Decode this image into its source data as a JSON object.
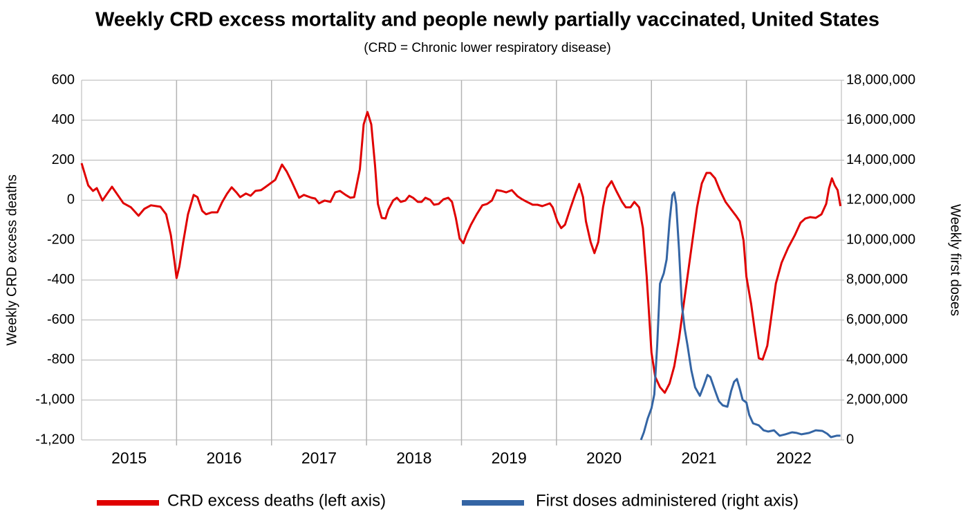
{
  "chart_data": {
    "type": "line",
    "title": "Weekly CRD excess mortality and people newly partially vaccinated, United States",
    "subtitle": "(CRD = Chronic lower respiratory disease)",
    "y_label": "Weekly CRD excess deaths",
    "y2_label": "Weekly first doses",
    "categories": [
      "2015",
      "2016",
      "2017",
      "2018",
      "2019",
      "2020",
      "2021",
      "2022"
    ],
    "xlim": [
      2015,
      2023
    ],
    "xticks": [
      2016,
      2017,
      2018,
      2019,
      2020,
      2021,
      2022
    ],
    "ylim": [
      -1200,
      600
    ],
    "yticks": [
      600,
      400,
      200,
      0,
      -200,
      -400,
      -600,
      -800,
      {
        "value": -1000,
        "label": "-1,000"
      },
      {
        "value": -1200,
        "label": "-1,200"
      }
    ],
    "y2lim": [
      0,
      18000000
    ],
    "y2ticks": [
      {
        "value": 18000000,
        "label": "18,000,000"
      },
      {
        "value": 16000000,
        "label": "16,000,000"
      },
      {
        "value": 14000000,
        "label": "14,000,000"
      },
      {
        "value": 12000000,
        "label": "12,000,000"
      },
      {
        "value": 10000000,
        "label": "10,000,000"
      },
      {
        "value": 8000000,
        "label": "8,000,000"
      },
      {
        "value": 6000000,
        "label": "6,000,000"
      },
      {
        "value": 4000000,
        "label": "4,000,000"
      },
      {
        "value": 2000000,
        "label": "2,000,000"
      },
      0
    ],
    "grid": true,
    "legend": "bottom",
    "series": [
      {
        "name": "CRD excess deaths (left axis)",
        "color": "#e00000",
        "x": [
          2015.0,
          2015.07,
          2015.12,
          2015.16,
          2015.22,
          2015.27,
          2015.32,
          2015.38,
          2015.44,
          2015.52,
          2015.6,
          2015.66,
          2015.73,
          2015.83,
          2015.89,
          2015.94,
          2015.98,
          2016.0,
          2016.03,
          2016.07,
          2016.12,
          2016.18,
          2016.22,
          2016.27,
          2016.31,
          2016.37,
          2016.43,
          2016.48,
          2016.53,
          2016.58,
          2016.63,
          2016.67,
          2016.73,
          2016.78,
          2016.83,
          2016.89,
          2016.94,
          2017.04,
          2017.11,
          2017.16,
          2017.21,
          2017.29,
          2017.34,
          2017.42,
          2017.46,
          2017.5,
          2017.56,
          2017.62,
          2017.67,
          2017.72,
          2017.78,
          2017.83,
          2017.87,
          2017.93,
          2017.97,
          2018.01,
          2018.05,
          2018.09,
          2018.12,
          2018.16,
          2018.2,
          2018.23,
          2018.28,
          2018.32,
          2018.36,
          2018.41,
          2018.45,
          2018.49,
          2018.54,
          2018.58,
          2018.62,
          2018.67,
          2018.71,
          2018.76,
          2018.81,
          2018.86,
          2018.9,
          2018.94,
          2018.98,
          2019.02,
          2019.05,
          2019.1,
          2019.16,
          2019.22,
          2019.27,
          2019.32,
          2019.37,
          2019.42,
          2019.47,
          2019.53,
          2019.59,
          2019.64,
          2019.69,
          2019.75,
          2019.8,
          2019.85,
          2019.93,
          2019.96,
          2020.01,
          2020.05,
          2020.09,
          2020.15,
          2020.2,
          2020.24,
          2020.28,
          2020.31,
          2020.36,
          2020.4,
          2020.44,
          2020.49,
          2020.53,
          2020.58,
          2020.63,
          2020.69,
          2020.73,
          2020.78,
          2020.82,
          2020.87,
          2020.91,
          2020.95,
          2021.0,
          2021.04,
          2021.09,
          2021.14,
          2021.19,
          2021.24,
          2021.29,
          2021.35,
          2021.42,
          2021.48,
          2021.53,
          2021.58,
          2021.62,
          2021.67,
          2021.72,
          2021.78,
          2021.84,
          2021.89,
          2021.93,
          2021.97,
          2022.0,
          2022.05,
          2022.09,
          2022.13,
          2022.17,
          2022.22,
          2022.26,
          2022.31,
          2022.37,
          2022.44,
          2022.51,
          2022.57,
          2022.62,
          2022.67,
          2022.73,
          2022.79,
          2022.84,
          2022.87,
          2022.9,
          2022.93,
          2022.96,
          2022.99
        ],
        "values": [
          185,
          74,
          46,
          60,
          -2,
          33,
          67,
          26,
          -15,
          -36,
          -78,
          -44,
          -26,
          -33,
          -71,
          -175,
          -313,
          -390,
          -331,
          -210,
          -71,
          26,
          15,
          -54,
          -71,
          -61,
          -61,
          -10,
          31,
          64,
          39,
          15,
          33,
          22,
          46,
          50,
          67,
          102,
          178,
          143,
          95,
          12,
          26,
          12,
          8,
          -16,
          -2,
          -9,
          39,
          46,
          26,
          12,
          15,
          154,
          379,
          441,
          379,
          171,
          -19,
          -89,
          -92,
          -47,
          -2,
          12,
          -9,
          -2,
          22,
          12,
          -9,
          -9,
          12,
          1,
          -23,
          -19,
          4,
          12,
          -9,
          -89,
          -192,
          -216,
          -175,
          -123,
          -71,
          -26,
          -19,
          -2,
          50,
          46,
          39,
          50,
          19,
          4,
          -9,
          -23,
          -23,
          -30,
          -16,
          -36,
          -106,
          -140,
          -123,
          -36,
          33,
          81,
          15,
          -106,
          -210,
          -265,
          -210,
          -36,
          60,
          95,
          46,
          -9,
          -36,
          -36,
          -9,
          -36,
          -140,
          -383,
          -763,
          -884,
          -936,
          -964,
          -918,
          -832,
          -694,
          -486,
          -244,
          -36,
          84,
          136,
          136,
          109,
          50,
          -9,
          -47,
          -78,
          -106,
          -203,
          -383,
          -521,
          -660,
          -791,
          -798,
          -729,
          -591,
          -417,
          -313,
          -237,
          -175,
          -113,
          -92,
          -85,
          -89,
          -71,
          -19,
          60,
          109,
          74,
          50,
          -30
        ]
      },
      {
        "name": "First doses administered (right axis)",
        "color": "#3465a4",
        "axis": "y2",
        "x": [
          2020.89,
          2020.92,
          2020.96,
          2021.0,
          2021.03,
          2021.06,
          2021.09,
          2021.13,
          2021.16,
          2021.19,
          2021.22,
          2021.24,
          2021.26,
          2021.29,
          2021.32,
          2021.35,
          2021.38,
          2021.42,
          2021.46,
          2021.51,
          2021.55,
          2021.59,
          2021.62,
          2021.67,
          2021.71,
          2021.75,
          2021.8,
          2021.84,
          2021.87,
          2021.9,
          2021.93,
          2021.96,
          2022.0,
          2022.03,
          2022.07,
          2022.13,
          2022.18,
          2022.23,
          2022.29,
          2022.35,
          2022.41,
          2022.48,
          2022.53,
          2022.58,
          2022.66,
          2022.73,
          2022.8,
          2022.85,
          2022.89,
          2022.95,
          2022.99
        ],
        "values": [
          0,
          380000,
          1070000,
          1590000,
          2280000,
          4710000,
          7820000,
          8340000,
          9030000,
          10930000,
          12250000,
          12390000,
          11800000,
          9550000,
          6780000,
          5570000,
          4710000,
          3490000,
          2630000,
          2210000,
          2700000,
          3250000,
          3150000,
          2460000,
          1940000,
          1730000,
          1660000,
          2460000,
          2910000,
          3050000,
          2560000,
          2010000,
          1870000,
          1250000,
          830000,
          730000,
          480000,
          420000,
          480000,
          210000,
          280000,
          380000,
          350000,
          280000,
          350000,
          480000,
          450000,
          310000,
          140000,
          210000,
          210000
        ]
      }
    ]
  }
}
